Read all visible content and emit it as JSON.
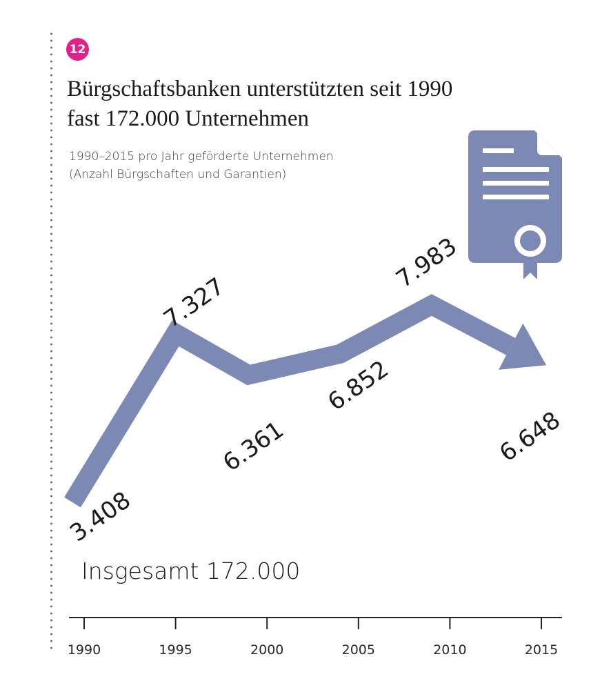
{
  "badge": "12",
  "title_line1": "Bürgschaftsbanken unterstützten seit 1990",
  "title_line2": "fast 172.000 Unternehmen",
  "subtitle_line1": "1990–2015 pro Jahr geförderte Unternehmen",
  "subtitle_line2": "(Anzahl Bürgschaften und Garantien)",
  "total_label": "Insgesamt 172.000",
  "icon": "certificate-document-icon",
  "colors": {
    "line": "#7c89b5",
    "badge": "#e0218a",
    "dots": "#6b5a3a",
    "axis": "#222222"
  },
  "chart_data": {
    "type": "line",
    "x": [
      1990,
      1995,
      1999,
      2004,
      2009,
      2015
    ],
    "y": [
      3408,
      7327,
      6361,
      6852,
      7983,
      6648
    ],
    "labels": [
      "3.408",
      "7.327",
      "6.361",
      "6.852",
      "7.983",
      "6.648"
    ],
    "xticks": [
      "1990",
      "1995",
      "2000",
      "2005",
      "2010",
      "2015"
    ],
    "xlim": [
      1990,
      2015
    ],
    "final_marker": "arrow",
    "grid": false
  }
}
